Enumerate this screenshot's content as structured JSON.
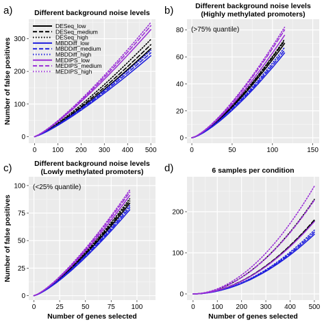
{
  "figure": {
    "xlabel": "Number of genes selected",
    "ylabel": "Number of false positives"
  },
  "styles": [
    {
      "name": "DESeq_low",
      "color": "#000000",
      "dash": "solid"
    },
    {
      "name": "DESeq_medium",
      "color": "#000000",
      "dash": "dashed"
    },
    {
      "name": "DESeq_high",
      "color": "#000000",
      "dash": "dotted"
    },
    {
      "name": "MBDDiff_low",
      "color": "#1f1fdd",
      "dash": "solid"
    },
    {
      "name": "MBDDiff_medium",
      "color": "#1f1fdd",
      "dash": "dashed"
    },
    {
      "name": "MBDDiff_high",
      "color": "#1f1fdd",
      "dash": "dotted"
    },
    {
      "name": "MEDIPS_low",
      "color": "#9a2fd6",
      "dash": "solid"
    },
    {
      "name": "MEDIPS_medium",
      "color": "#9a2fd6",
      "dash": "dashed"
    },
    {
      "name": "MEDIPS_high",
      "color": "#9a2fd6",
      "dash": "dotted"
    }
  ],
  "chart_data": [
    {
      "letter": "a)",
      "type": "line",
      "title": "Different background noise levels",
      "title2": "",
      "note": "",
      "legend": true,
      "xlim": [
        -25,
        520
      ],
      "ylim": [
        -20,
        360
      ],
      "xticks": [
        0,
        100,
        200,
        300,
        400,
        500
      ],
      "yticks": [
        0,
        100,
        200,
        300
      ],
      "show_ylabel": true,
      "show_xlabel": false,
      "xmax": 500,
      "curve_power": 1.22,
      "series": [
        {
          "name": "DESeq_low",
          "end": 270
        },
        {
          "name": "DESeq_medium",
          "end": 282
        },
        {
          "name": "DESeq_high",
          "end": 298
        },
        {
          "name": "MBDDiff_low",
          "end": 248
        },
        {
          "name": "MBDDiff_medium",
          "end": 257
        },
        {
          "name": "MBDDiff_high",
          "end": 265
        },
        {
          "name": "MEDIPS_low",
          "end": 328
        },
        {
          "name": "MEDIPS_medium",
          "end": 340
        },
        {
          "name": "MEDIPS_high",
          "end": 350
        }
      ]
    },
    {
      "letter": "b)",
      "type": "line",
      "title": "Different background noise levels",
      "title2": "(Highly methylated promoters)",
      "note": "(>75% quantile)",
      "legend": false,
      "xlim": [
        -6,
        158
      ],
      "ylim": [
        -4,
        88
      ],
      "xticks": [
        0,
        50,
        100,
        150
      ],
      "yticks": [
        0,
        20,
        40,
        60,
        80
      ],
      "show_ylabel": false,
      "show_xlabel": false,
      "xmax": 115,
      "curve_power": 1.35,
      "series": [
        {
          "name": "DESeq_low",
          "end": 70
        },
        {
          "name": "DESeq_medium",
          "end": 72
        },
        {
          "name": "DESeq_high",
          "end": 73
        },
        {
          "name": "MBDDiff_low",
          "end": 63
        },
        {
          "name": "MBDDiff_medium",
          "end": 65
        },
        {
          "name": "MBDDiff_high",
          "end": 67
        },
        {
          "name": "MEDIPS_low",
          "end": 76
        },
        {
          "name": "MEDIPS_medium",
          "end": 80
        },
        {
          "name": "MEDIPS_high",
          "end": 82
        }
      ]
    },
    {
      "letter": "c)",
      "type": "line",
      "title": "Different background noise levels",
      "title2": "(Lowly methylated promoters)",
      "note": "(<25% quantile)",
      "legend": false,
      "xlim": [
        -5,
        118
      ],
      "ylim": [
        -4,
        108
      ],
      "xticks": [
        0,
        25,
        50,
        75,
        100
      ],
      "yticks": [
        0,
        25,
        50,
        75,
        100
      ],
      "show_ylabel": true,
      "show_xlabel": true,
      "xmax": 93,
      "curve_power": 1.3,
      "series": [
        {
          "name": "DESeq_low",
          "end": 84
        },
        {
          "name": "DESeq_medium",
          "end": 86
        },
        {
          "name": "DESeq_high",
          "end": 88
        },
        {
          "name": "MBDDiff_low",
          "end": 78
        },
        {
          "name": "MBDDiff_medium",
          "end": 80
        },
        {
          "name": "MBDDiff_high",
          "end": 82
        },
        {
          "name": "MEDIPS_low",
          "end": 91
        },
        {
          "name": "MEDIPS_medium",
          "end": 94
        },
        {
          "name": "MEDIPS_high",
          "end": 96
        }
      ]
    },
    {
      "letter": "d)",
      "type": "line",
      "title": "6 samples per condition",
      "title2": "",
      "note": "",
      "legend": false,
      "xlim": [
        -25,
        520
      ],
      "ylim": [
        -15,
        285
      ],
      "xticks": [
        0,
        100,
        200,
        300,
        400,
        500
      ],
      "yticks": [
        0,
        100,
        200
      ],
      "show_ylabel": false,
      "show_xlabel": true,
      "xmax": 500,
      "curve_power": 1.9,
      "series": [
        {
          "name": "DESeq_low",
          "end": 178
        },
        {
          "name": "DESeq_medium",
          "end": 180
        },
        {
          "name": "DESeq_high",
          "end": 230
        },
        {
          "name": "MBDDiff_low",
          "end": 145
        },
        {
          "name": "MBDDiff_medium",
          "end": 150
        },
        {
          "name": "MBDDiff_high",
          "end": 155
        },
        {
          "name": "MEDIPS_low",
          "end": 176
        },
        {
          "name": "MEDIPS_medium",
          "end": 228
        },
        {
          "name": "MEDIPS_high",
          "end": 262
        }
      ]
    }
  ]
}
